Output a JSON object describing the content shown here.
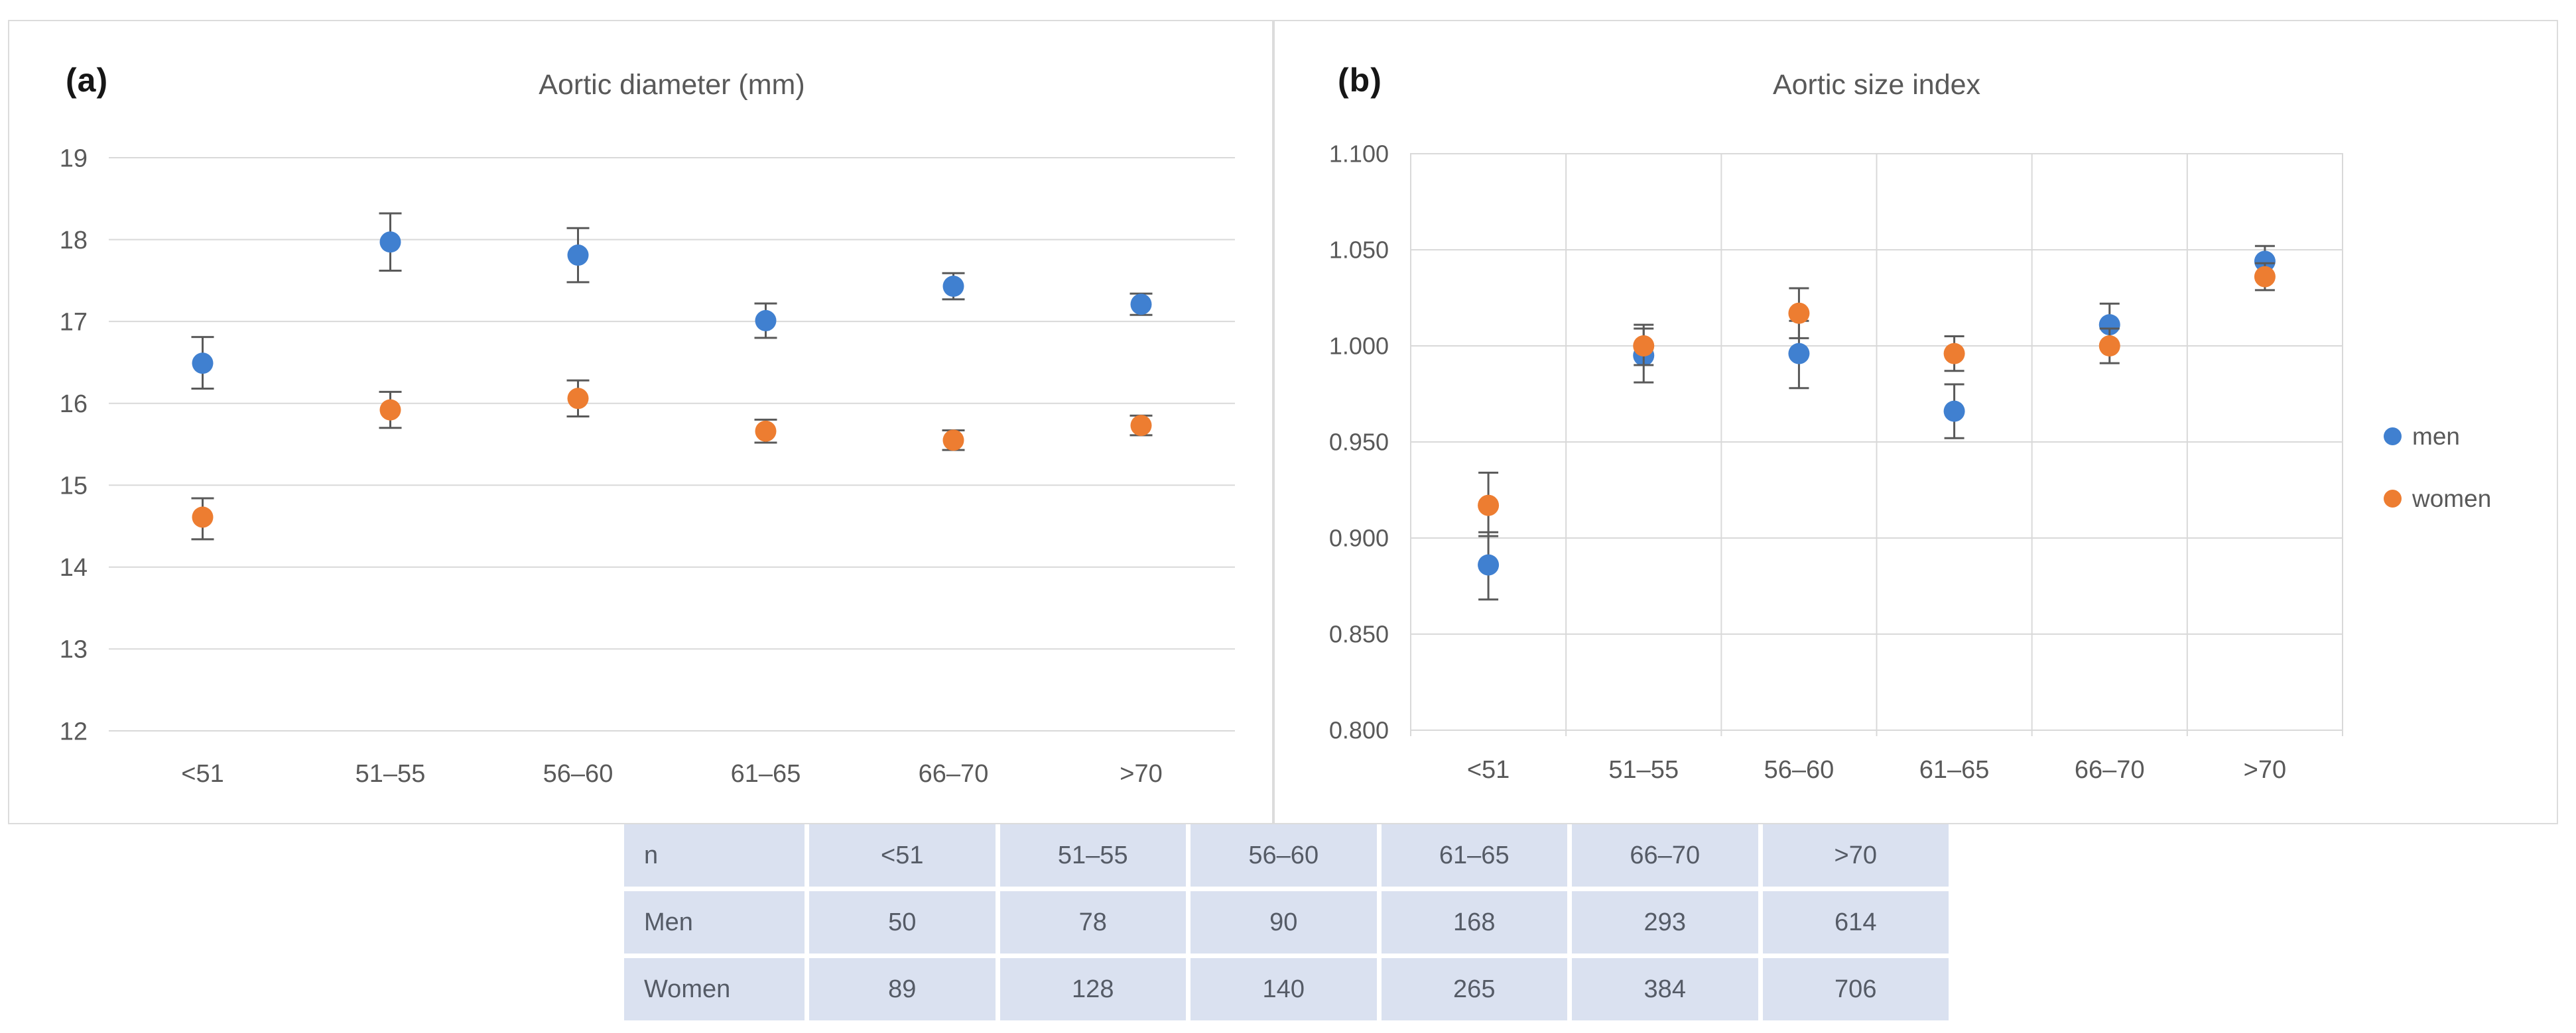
{
  "colors": {
    "men": "#4080D0",
    "women": "#ED7D31",
    "error_bar": "#595959",
    "gridline": "#D9D9D9",
    "axis_text": "#595959",
    "title_text": "#595959",
    "panel_border": "#DCDCDC",
    "table_cell_bg": "#DAE1F0",
    "table_text": "#555B66"
  },
  "chart_data": [
    {
      "id": "aortic-diameter",
      "type": "scatter",
      "panel_tag": "(a)",
      "title": "Aortic diameter (mm)",
      "categories": [
        "<51",
        "51–55",
        "56–60",
        "61–65",
        "66–70",
        ">70"
      ],
      "xlabel": "",
      "ylabel": "",
      "ylim": [
        12,
        19
      ],
      "ytick_step": 1,
      "ytick_decimals": 0,
      "grid": "horizontal",
      "legend_position": "none",
      "series": [
        {
          "name": "men",
          "color_key": "men",
          "values": [
            16.49,
            17.97,
            17.81,
            17.01,
            17.43,
            17.21
          ],
          "err_low": [
            16.18,
            17.62,
            17.48,
            16.8,
            17.27,
            17.08
          ],
          "err_high": [
            16.81,
            18.32,
            18.14,
            17.22,
            17.59,
            17.34
          ]
        },
        {
          "name": "women",
          "color_key": "women",
          "values": [
            14.61,
            15.92,
            16.06,
            15.66,
            15.55,
            15.73
          ],
          "err_low": [
            14.34,
            15.7,
            15.84,
            15.52,
            15.43,
            15.61
          ],
          "err_high": [
            14.84,
            16.14,
            16.28,
            15.8,
            15.67,
            15.85
          ]
        }
      ]
    },
    {
      "id": "aortic-size-index",
      "type": "scatter",
      "panel_tag": "(b)",
      "title": "Aortic size index",
      "categories": [
        "<51",
        "51–55",
        "56–60",
        "61–65",
        "66–70",
        ">70"
      ],
      "xlabel": "",
      "ylabel": "",
      "ylim": [
        0.8,
        1.1
      ],
      "ytick_step": 0.05,
      "ytick_decimals": 3,
      "grid": "both",
      "legend_position": "right",
      "series": [
        {
          "name": "men",
          "color_key": "men",
          "values": [
            0.886,
            0.995,
            0.996,
            0.966,
            1.011,
            1.044
          ],
          "err_low": [
            0.868,
            0.981,
            0.978,
            0.952,
            1.0,
            1.036
          ],
          "err_high": [
            0.903,
            1.009,
            1.013,
            0.98,
            1.022,
            1.052
          ]
        },
        {
          "name": "women",
          "color_key": "women",
          "values": [
            0.917,
            1.0,
            1.017,
            0.996,
            1.0,
            1.036
          ],
          "err_low": [
            0.901,
            0.99,
            1.004,
            0.987,
            0.991,
            1.029
          ],
          "err_high": [
            0.934,
            1.011,
            1.03,
            1.005,
            1.009,
            1.043
          ]
        }
      ]
    }
  ],
  "table": {
    "header": [
      "n",
      "<51",
      "51–55",
      "56–60",
      "61–65",
      "66–70",
      ">70"
    ],
    "rows": [
      {
        "label": "Men",
        "values": [
          "50",
          "78",
          "90",
          "168",
          "293",
          "614"
        ]
      },
      {
        "label": "Women",
        "values": [
          "89",
          "128",
          "140",
          "265",
          "384",
          "706"
        ]
      }
    ]
  }
}
